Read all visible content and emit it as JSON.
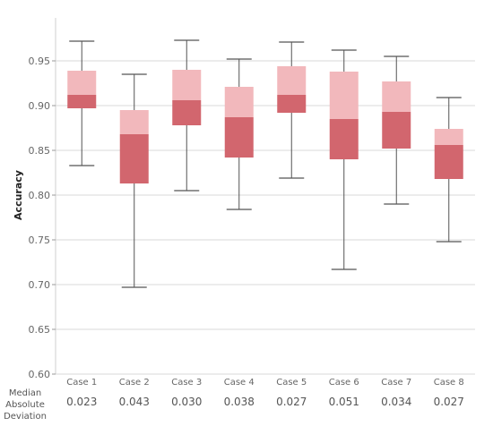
{
  "chart_data": {
    "type": "box",
    "title": "",
    "xlabel": "",
    "ylabel": "Accuracy",
    "ylim": [
      0.6,
      0.98
    ],
    "y_ticks": [
      "0.60",
      "0.65",
      "0.70",
      "0.75",
      "0.80",
      "0.85",
      "0.90",
      "0.95"
    ],
    "y_tick_values": [
      0.6,
      0.65,
      0.7,
      0.75,
      0.8,
      0.85,
      0.9,
      0.95
    ],
    "grid": true,
    "colors": {
      "upper_box": "#f2b8bc",
      "lower_box": "#d2666e",
      "whisker": "#555555",
      "grid": "#d9d9d9"
    },
    "categories": [
      "Case 1",
      "Case 2",
      "Case 3",
      "Case 4",
      "Case 5",
      "Case 6",
      "Case 7",
      "Case 8"
    ],
    "boxes": [
      {
        "min": 0.833,
        "q1": 0.897,
        "median": 0.912,
        "q3": 0.939,
        "max": 0.972
      },
      {
        "min": 0.697,
        "q1": 0.813,
        "median": 0.868,
        "q3": 0.895,
        "max": 0.935
      },
      {
        "min": 0.805,
        "q1": 0.878,
        "median": 0.906,
        "q3": 0.94,
        "max": 0.973
      },
      {
        "min": 0.784,
        "q1": 0.842,
        "median": 0.887,
        "q3": 0.921,
        "max": 0.952
      },
      {
        "min": 0.819,
        "q1": 0.892,
        "median": 0.912,
        "q3": 0.944,
        "max": 0.971
      },
      {
        "min": 0.717,
        "q1": 0.84,
        "median": 0.885,
        "q3": 0.938,
        "max": 0.962
      },
      {
        "min": 0.79,
        "q1": 0.852,
        "median": 0.893,
        "q3": 0.927,
        "max": 0.955
      },
      {
        "min": 0.748,
        "q1": 0.818,
        "median": 0.856,
        "q3": 0.874,
        "max": 0.909
      }
    ],
    "row_label": [
      "Median",
      "Absolute",
      "Deviation"
    ],
    "mad_values": [
      "0.023",
      "0.043",
      "0.030",
      "0.038",
      "0.027",
      "0.051",
      "0.034",
      "0.027"
    ]
  }
}
